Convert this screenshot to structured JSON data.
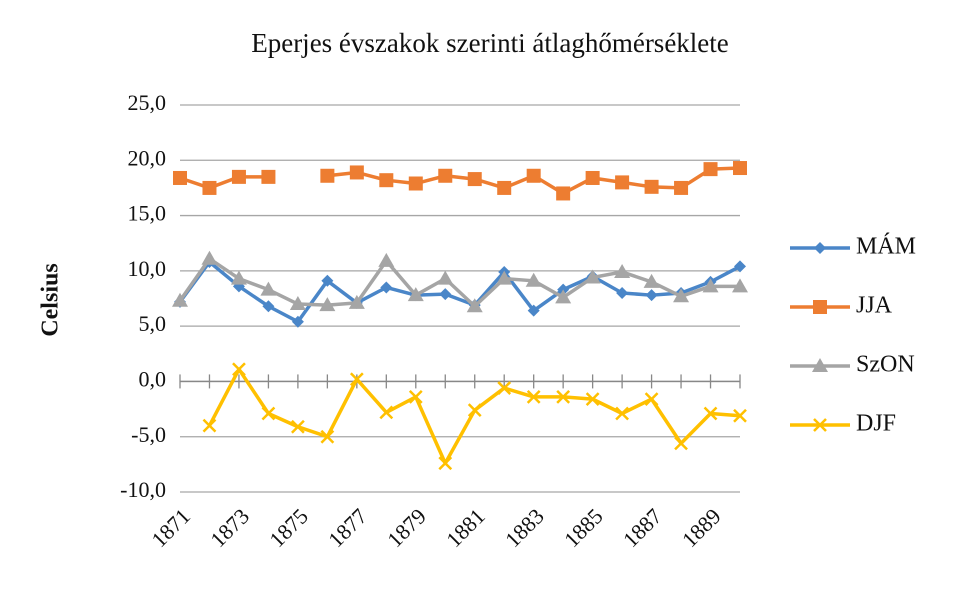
{
  "chart_data": {
    "type": "line",
    "title": "Eperjes évszakok szerinti átlaghőmérséklete",
    "ylabel": "Celsius",
    "categories": [
      "1871",
      null,
      "1873",
      null,
      "1875",
      null,
      "1877",
      null,
      "1879",
      null,
      "1881",
      null,
      "1883",
      null,
      "1885",
      null,
      "1887",
      null,
      "1889",
      null
    ],
    "ylim": [
      -10,
      25
    ],
    "yticks": [
      {
        "value": -10,
        "label": "-10,0"
      },
      {
        "value": -5,
        "label": "-5,0"
      },
      {
        "value": 0,
        "label": "0,0"
      },
      {
        "value": 5,
        "label": "5,0"
      },
      {
        "value": 10,
        "label": "10,0"
      },
      {
        "value": 15,
        "label": "15,0"
      },
      {
        "value": 20,
        "label": "20,0"
      },
      {
        "value": 25,
        "label": "25,0"
      }
    ],
    "grid": true,
    "legend": "right",
    "series": [
      {
        "name": "MÁM",
        "color": "#4a86c8",
        "marker": "diamond",
        "values": [
          7.2,
          10.8,
          8.6,
          6.8,
          5.4,
          9.1,
          7.1,
          8.5,
          7.8,
          7.9,
          6.9,
          9.9,
          6.4,
          8.3,
          9.5,
          8.0,
          7.8,
          8.0,
          9.0,
          10.4
        ]
      },
      {
        "name": "JJA",
        "color": "#ed7d31",
        "marker": "square",
        "values": [
          18.4,
          17.5,
          18.5,
          18.5,
          null,
          18.6,
          18.9,
          18.2,
          17.9,
          18.6,
          18.3,
          17.5,
          18.6,
          17.0,
          18.4,
          18.0,
          17.6,
          17.5,
          19.2,
          19.3
        ]
      },
      {
        "name": "SzON",
        "color": "#a5a5a5",
        "marker": "triangle",
        "values": [
          7.3,
          11.1,
          9.3,
          8.3,
          7.0,
          6.9,
          7.1,
          10.9,
          7.8,
          9.3,
          6.8,
          9.3,
          9.1,
          7.6,
          9.4,
          9.9,
          9.0,
          7.7,
          8.6,
          8.6
        ]
      },
      {
        "name": "DJF",
        "color": "#ffc000",
        "marker": "x",
        "values": [
          null,
          -4.0,
          1.1,
          -2.9,
          -4.1,
          -5.0,
          0.2,
          -2.8,
          -1.4,
          -7.4,
          -2.6,
          -0.6,
          -1.4,
          -1.4,
          -1.6,
          -2.9,
          -1.6,
          -5.6,
          -2.9,
          -3.1
        ]
      }
    ]
  }
}
